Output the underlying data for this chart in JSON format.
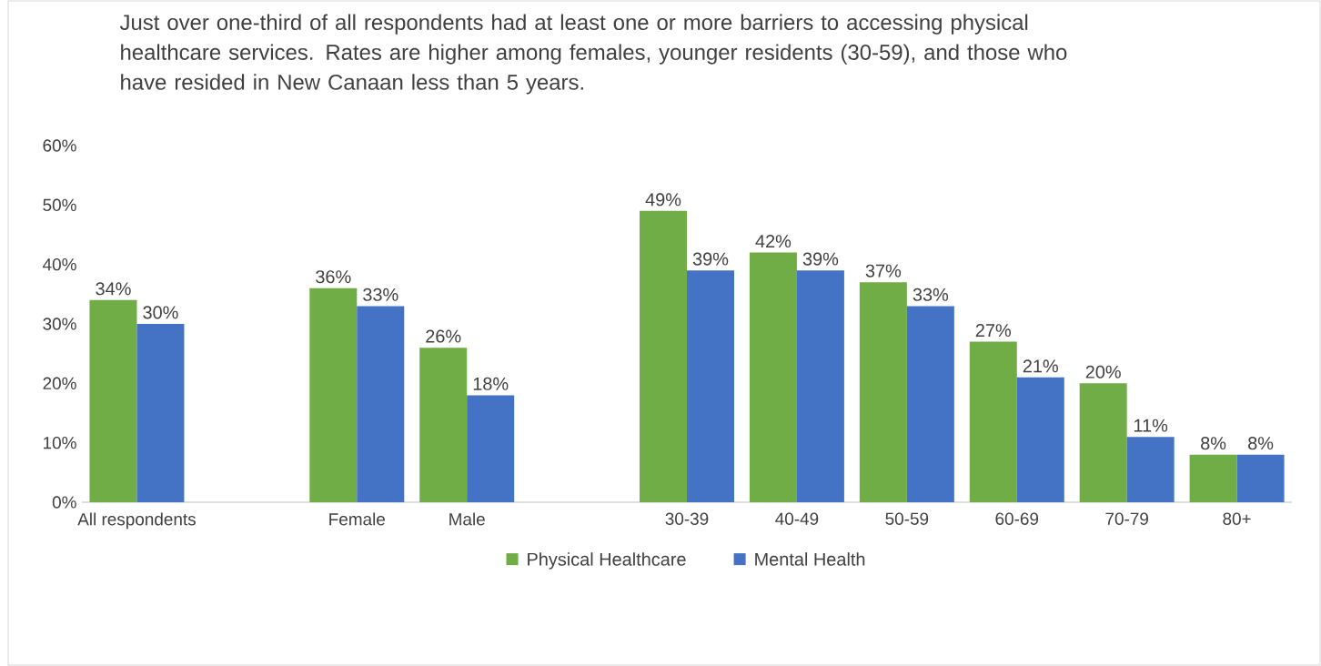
{
  "chart_data": {
    "type": "bar",
    "title": "Just over one-third of all respondents had at least one or more barriers to accessing physical healthcare services. Rates are higher among females, younger residents (30-59), and those who have resided in New Canaan less than 5 years.",
    "categories": [
      "All respondents",
      null,
      "Female",
      "Male",
      null,
      "30-39",
      "40-49",
      "50-59",
      "60-69",
      "70-79",
      "80+"
    ],
    "series": [
      {
        "name": "Physical Healthcare",
        "color": "#70ad47",
        "values": [
          34,
          null,
          36,
          26,
          null,
          49,
          42,
          37,
          27,
          20,
          8
        ],
        "value_labels": [
          "34%",
          null,
          "36%",
          "26%",
          null,
          "49%",
          "42%",
          "37%",
          "27%",
          "20%",
          "8%"
        ]
      },
      {
        "name": "Mental Health",
        "color": "#4472c4",
        "values": [
          30,
          null,
          33,
          18,
          null,
          39,
          39,
          33,
          21,
          11,
          8
        ],
        "value_labels": [
          "30%",
          null,
          "33%",
          "18%",
          null,
          "39%",
          "39%",
          "33%",
          "21%",
          "11%",
          "8%"
        ]
      }
    ],
    "ylim": [
      0,
      60
    ],
    "yticks": [
      {
        "value": 0,
        "label": "0%"
      },
      {
        "value": 10,
        "label": "10%"
      },
      {
        "value": 20,
        "label": "20%"
      },
      {
        "value": 30,
        "label": "30%"
      },
      {
        "value": 40,
        "label": "40%"
      },
      {
        "value": 50,
        "label": "50%"
      },
      {
        "value": 60,
        "label": "60%"
      }
    ],
    "legend": "bottom"
  }
}
